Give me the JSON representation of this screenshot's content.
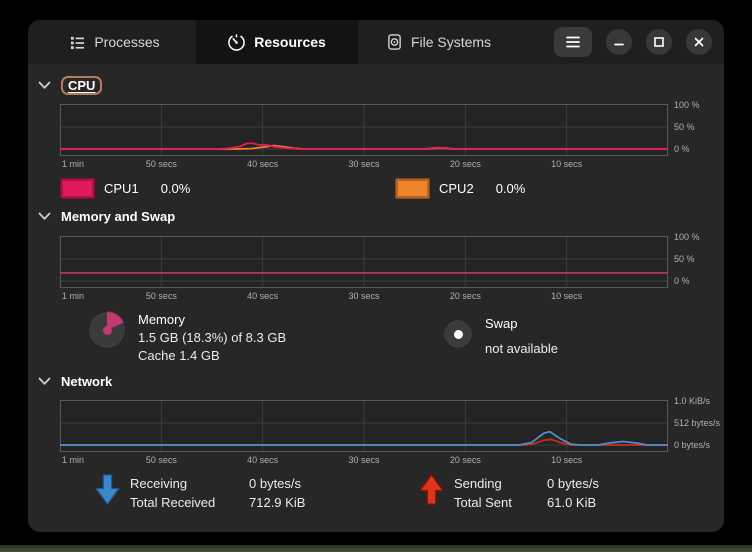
{
  "header": {
    "tabs": [
      {
        "label": "Processes",
        "active": false
      },
      {
        "label": "Resources",
        "active": true
      },
      {
        "label": "File Systems",
        "active": false
      }
    ]
  },
  "sections": {
    "cpu": {
      "title": "CPU",
      "legend": [
        {
          "label": "CPU1",
          "value": "0.0%",
          "color": "#e01b5c"
        },
        {
          "label": "CPU2",
          "value": "0.0%",
          "color": "#f0842c"
        }
      ]
    },
    "memory": {
      "title": "Memory and Swap",
      "memory": {
        "label": "Memory",
        "usage": "1.5 GB (18.3%) of 8.3 GB",
        "cache": "Cache 1.4 GB",
        "pie_percent": 18.3,
        "pie_color": "#c13a72"
      },
      "swap": {
        "label": "Swap",
        "status": "not available"
      }
    },
    "network": {
      "title": "Network",
      "receiving": {
        "label": "Receiving",
        "rate": "0 bytes/s",
        "total_label": "Total Received",
        "total": "712.9 KiB",
        "icon_color": "#3d86c9"
      },
      "sending": {
        "label": "Sending",
        "rate": "0 bytes/s",
        "total_label": "Total Sent",
        "total": "61.0 KiB",
        "icon_color": "#e0341c"
      }
    }
  },
  "charts": [
    {
      "id": "cpu",
      "type": "line",
      "y_labels": [
        "100 %",
        "50 %",
        "0 %"
      ],
      "x_labels": [
        "1 min",
        "50 secs",
        "40 secs",
        "30 secs",
        "20 secs",
        "10 secs"
      ],
      "series": [
        {
          "name": "CPU2",
          "color": "#f0842c",
          "points": [
            [
              0,
              0
            ],
            [
              0.29,
              0
            ],
            [
              0.315,
              0.01
            ],
            [
              0.335,
              0.045
            ],
            [
              0.352,
              0.075
            ],
            [
              0.368,
              0.05
            ],
            [
              0.385,
              0.015
            ],
            [
              0.4,
              0
            ],
            [
              0.6,
              0
            ],
            [
              0.615,
              0.015
            ],
            [
              0.632,
              0.02
            ],
            [
              0.648,
              0
            ],
            [
              1,
              0
            ]
          ]
        },
        {
          "name": "CPU1",
          "color": "#e01b5c",
          "points": [
            [
              0,
              0
            ],
            [
              0.26,
              0
            ],
            [
              0.28,
              0.02
            ],
            [
              0.296,
              0.06
            ],
            [
              0.307,
              0.125
            ],
            [
              0.317,
              0.135
            ],
            [
              0.327,
              0.09
            ],
            [
              0.338,
              0.1
            ],
            [
              0.352,
              0.05
            ],
            [
              0.372,
              0.02
            ],
            [
              0.392,
              0
            ],
            [
              0.598,
              0
            ],
            [
              0.616,
              0.03
            ],
            [
              0.634,
              0.027
            ],
            [
              0.652,
              0
            ],
            [
              1,
              0
            ]
          ]
        }
      ]
    },
    {
      "id": "memory",
      "type": "line",
      "y_labels": [
        "100 %",
        "50 %",
        "0 %"
      ],
      "x_labels": [
        "1 min",
        "50 secs",
        "40 secs",
        "30 secs",
        "20 secs",
        "10 secs"
      ],
      "series": [
        {
          "name": "memory",
          "color": "#ad3963",
          "points": [
            [
              0,
              0.183
            ],
            [
              1,
              0.183
            ]
          ]
        }
      ]
    },
    {
      "id": "network",
      "type": "line",
      "y_labels": [
        "1.0 KiB/s",
        "512 bytes/s",
        "0 bytes/s"
      ],
      "x_labels": [
        "1 min",
        "50 secs",
        "40 secs",
        "30 secs",
        "20 secs",
        "10 secs"
      ],
      "series": [
        {
          "name": "sending",
          "color": "#cc2b1c",
          "points": [
            [
              0,
              0
            ],
            [
              0.765,
              0
            ],
            [
              0.78,
              0.03
            ],
            [
              0.796,
              0.11
            ],
            [
              0.808,
              0.13
            ],
            [
              0.824,
              0.05
            ],
            [
              0.84,
              0
            ],
            [
              1,
              0
            ]
          ]
        },
        {
          "name": "receiving",
          "color": "#4a8fd0",
          "points": [
            [
              0,
              0
            ],
            [
              0.755,
              0
            ],
            [
              0.775,
              0.05
            ],
            [
              0.796,
              0.27
            ],
            [
              0.806,
              0.3
            ],
            [
              0.822,
              0.15
            ],
            [
              0.84,
              0.02
            ],
            [
              0.856,
              0
            ],
            [
              0.885,
              0
            ],
            [
              0.906,
              0.05
            ],
            [
              0.926,
              0.08
            ],
            [
              0.95,
              0.04
            ],
            [
              0.966,
              0
            ],
            [
              1,
              0
            ]
          ]
        }
      ]
    }
  ]
}
